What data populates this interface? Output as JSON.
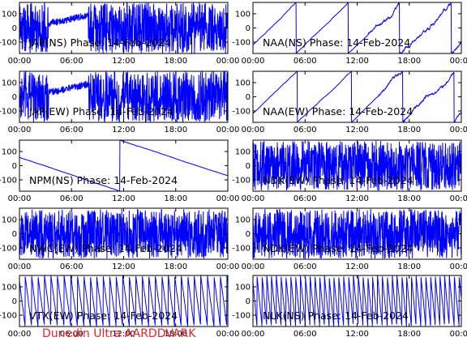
{
  "footer": "Dunedin Ultra AARDDVARK",
  "colors": {
    "trace": "#0000ff",
    "axis": "#000000",
    "footer": "#e8232f"
  },
  "chart_data": [
    {
      "type": "line",
      "title": "JAP(NS) Phase: 14-Feb-2024",
      "pattern": "dense-blocks",
      "params": [
        0.98,
        0.2,
        0.99,
        0.32,
        0.28
      ],
      "xticks": [
        "00:00",
        "06:00",
        "12:00",
        "18:00",
        "00:00"
      ],
      "yticks": [
        100,
        0,
        -100
      ],
      "ylim": [
        -180,
        180
      ],
      "xlabel": "",
      "ylabel": ""
    },
    {
      "type": "line",
      "title": "NAA(NS) Phase: 14-Feb-2024",
      "pattern": "drift-noise",
      "params": [
        0.4,
        0.3,
        0.7,
        0.15,
        0.55
      ],
      "xticks": [
        "00:00",
        "06:00",
        "12:00",
        "18:00",
        "00:00"
      ],
      "yticks": [
        100,
        0,
        -100
      ],
      "ylim": [
        -180,
        180
      ],
      "xlabel": "",
      "ylabel": ""
    },
    {
      "type": "line",
      "title": "JAP(EW) Phase: 14-Feb-2024",
      "pattern": "dense-blocks",
      "params": [
        0.98,
        0.25,
        0.99,
        0.32,
        0.28
      ],
      "xticks": [
        "00:00",
        "06:00",
        "12:00",
        "18:00",
        "00:00"
      ],
      "yticks": [
        100,
        0,
        -100
      ],
      "ylim": [
        -180,
        180
      ],
      "xlabel": "",
      "ylabel": ""
    },
    {
      "type": "line",
      "title": "NAA(EW) Phase: 14-Feb-2024",
      "pattern": "drift-noise",
      "params": [
        0.3,
        0.4,
        0.5,
        0.12,
        0.6
      ],
      "xticks": [
        "00:00",
        "06:00",
        "12:00",
        "18:00",
        "00:00"
      ],
      "yticks": [
        100,
        0,
        -100
      ],
      "ylim": [
        -180,
        180
      ],
      "xlabel": "",
      "ylabel": ""
    },
    {
      "type": "line",
      "title": "NPM(NS) Phase: 14-Feb-2024",
      "pattern": "slow-sawtooth",
      "params": [
        0.15,
        0.35,
        0.55,
        0.78,
        0.9
      ],
      "xticks": [
        "00:00",
        "06:00",
        "12:00",
        "18:00",
        "00:00"
      ],
      "yticks": [
        100,
        0,
        -100
      ],
      "ylim": [
        -180,
        180
      ],
      "xlabel": "",
      "ylabel": ""
    },
    {
      "type": "line",
      "title": "NDK(EW) Phase: 14-Feb-2024",
      "pattern": "dense-noise",
      "params": [
        0.9,
        0.1,
        0.2,
        0.3,
        0.4
      ],
      "xticks": [
        "00:00",
        "06:00",
        "12:00",
        "18:00",
        "00:00"
      ],
      "yticks": [
        100,
        0,
        -100
      ],
      "ylim": [
        -180,
        180
      ],
      "xlabel": "",
      "ylabel": ""
    },
    {
      "type": "line",
      "title": "NWC(EW) Phase: 14-Feb-2024",
      "pattern": "dense-noise",
      "params": [
        0.7,
        0.2,
        0.3,
        0.4,
        0.5
      ],
      "xticks": [
        "00:00",
        "06:00",
        "12:00",
        "18:00",
        "00:00"
      ],
      "yticks": [
        100,
        0,
        -100
      ],
      "ylim": [
        -180,
        180
      ],
      "xlabel": "",
      "ylabel": ""
    },
    {
      "type": "line",
      "title": "NDK(EW) Phase: 14-Feb-2024",
      "pattern": "dense-noise",
      "params": [
        0.95,
        0.15,
        0.25,
        0.35,
        0.45
      ],
      "xticks": [
        "00:00",
        "06:00",
        "12:00",
        "18:00",
        "00:00"
      ],
      "yticks": [
        100,
        0,
        -100
      ],
      "ylim": [
        -180,
        180
      ],
      "xlabel": "",
      "ylabel": ""
    },
    {
      "type": "line",
      "title": "VTX(EW) Phase: 14-Feb-2024",
      "pattern": "fast-sawtooth",
      "params": [
        0.05,
        0.12,
        0.1,
        0.2,
        0.3
      ],
      "xticks": [
        "00:00",
        "06:00",
        "12:00",
        "18:00",
        "00:00"
      ],
      "yticks": [
        100,
        0,
        -100
      ],
      "ylim": [
        -180,
        180
      ],
      "xlabel": "",
      "ylabel": ""
    },
    {
      "type": "line",
      "title": "NLK(NS) Phase: 14-Feb-2024",
      "pattern": "fast-sawtooth",
      "params": [
        0.03,
        0.05,
        0.1,
        0.2,
        0.3
      ],
      "xticks": [
        "00:00",
        "06:00",
        "12:00",
        "18:00",
        "00:00"
      ],
      "yticks": [
        100,
        0,
        -100
      ],
      "ylim": [
        -180,
        180
      ],
      "xlabel": "",
      "ylabel": ""
    }
  ]
}
